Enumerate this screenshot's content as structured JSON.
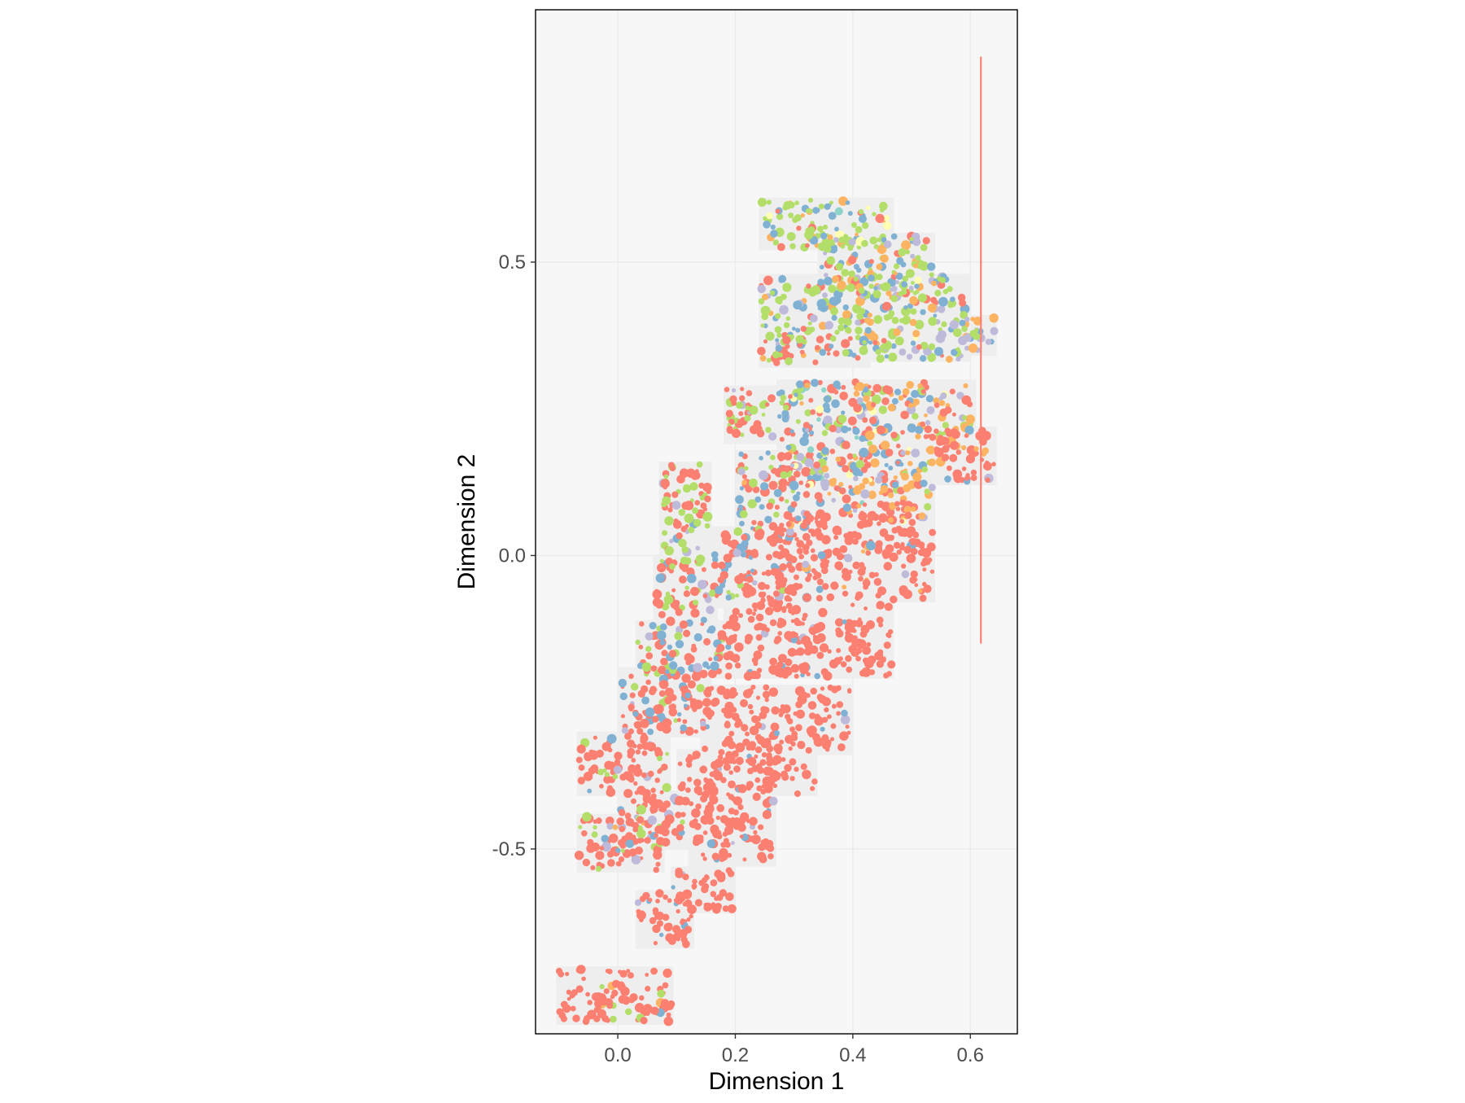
{
  "chart_data": {
    "type": "scatter",
    "title": "",
    "xlabel": "Dimension 1",
    "ylabel": "Dimension 2",
    "xlim": [
      -0.14,
      0.68
    ],
    "ylim": [
      -0.815,
      0.93
    ],
    "x_ticks": [
      {
        "value": 0.0,
        "label": "0.0"
      },
      {
        "value": 0.2,
        "label": "0.2"
      },
      {
        "value": 0.4,
        "label": "0.4"
      },
      {
        "value": 0.6,
        "label": "0.6"
      }
    ],
    "y_ticks": [
      {
        "value": 0.5,
        "label": "0.5"
      },
      {
        "value": 0.0,
        "label": "0.0"
      },
      {
        "value": -0.5,
        "label": "-0.5"
      }
    ],
    "grid": true,
    "legend": "none",
    "colors": {
      "panel_background": "#f7f7f7",
      "grid": "#ebebeb",
      "panel_border": "#000000",
      "tile_fill": "#eeeeee",
      "palette": [
        "#fb8072",
        "#b3de69",
        "#80b1d3",
        "#fdb462",
        "#bebada",
        "#8dd3c7",
        "#ffffb3"
      ]
    },
    "vertical_segment": {
      "x": 0.618,
      "y_start": 0.85,
      "y_end": -0.15,
      "color": "#fb8072"
    },
    "tiles": [
      {
        "x": [
          -0.105,
          0.095
        ],
        "y": [
          -0.7,
          -0.8
        ],
        "mix": [
          0.85,
          0.05,
          0.06,
          0.02,
          0.02,
          0.0,
          0.0
        ]
      },
      {
        "x": [
          0.03,
          0.13
        ],
        "y": [
          -0.57,
          -0.67
        ],
        "mix": [
          0.9,
          0.02,
          0.06,
          0.0,
          0.02,
          0.0,
          0.0
        ]
      },
      {
        "x": [
          0.09,
          0.2
        ],
        "y": [
          -0.53,
          -0.61
        ],
        "mix": [
          0.94,
          0.0,
          0.04,
          0.0,
          0.02,
          0.0,
          0.0
        ]
      },
      {
        "x": [
          -0.07,
          0.08
        ],
        "y": [
          -0.44,
          -0.54
        ],
        "mix": [
          0.7,
          0.08,
          0.16,
          0.02,
          0.04,
          0.0,
          0.0
        ]
      },
      {
        "x": [
          0.0,
          0.12
        ],
        "y": [
          -0.4,
          -0.5
        ],
        "mix": [
          0.8,
          0.04,
          0.12,
          0.0,
          0.04,
          0.0,
          0.0
        ]
      },
      {
        "x": [
          0.12,
          0.27
        ],
        "y": [
          -0.39,
          -0.53
        ],
        "mix": [
          0.95,
          0.0,
          0.03,
          0.0,
          0.02,
          0.0,
          0.0
        ]
      },
      {
        "x": [
          -0.07,
          0.09
        ],
        "y": [
          -0.3,
          -0.41
        ],
        "mix": [
          0.78,
          0.12,
          0.06,
          0.0,
          0.04,
          0.0,
          0.0
        ]
      },
      {
        "x": [
          0.1,
          0.34
        ],
        "y": [
          -0.33,
          -0.41
        ],
        "mix": [
          0.95,
          0.0,
          0.03,
          0.0,
          0.02,
          0.0,
          0.0
        ]
      },
      {
        "x": [
          0.0,
          0.16
        ],
        "y": [
          -0.19,
          -0.31
        ],
        "mix": [
          0.72,
          0.1,
          0.14,
          0.0,
          0.04,
          0.0,
          0.0
        ]
      },
      {
        "x": [
          0.14,
          0.4
        ],
        "y": [
          -0.22,
          -0.34
        ],
        "mix": [
          0.95,
          0.0,
          0.03,
          0.0,
          0.02,
          0.0,
          0.0
        ]
      },
      {
        "x": [
          0.03,
          0.2
        ],
        "y": [
          -0.11,
          -0.21
        ],
        "mix": [
          0.5,
          0.14,
          0.3,
          0.0,
          0.06,
          0.0,
          0.0
        ]
      },
      {
        "x": [
          0.18,
          0.47
        ],
        "y": [
          -0.08,
          -0.21
        ],
        "mix": [
          0.94,
          0.0,
          0.04,
          0.0,
          0.02,
          0.0,
          0.0
        ]
      },
      {
        "x": [
          0.06,
          0.17
        ],
        "y": [
          0.0,
          -0.12
        ],
        "mix": [
          0.6,
          0.2,
          0.14,
          0.0,
          0.06,
          0.0,
          0.0
        ]
      },
      {
        "x": [
          0.16,
          0.3
        ],
        "y": [
          0.05,
          -0.09
        ],
        "mix": [
          0.62,
          0.08,
          0.24,
          0.0,
          0.06,
          0.0,
          0.0
        ]
      },
      {
        "x": [
          0.26,
          0.54
        ],
        "y": [
          0.08,
          -0.08
        ],
        "mix": [
          0.9,
          0.0,
          0.02,
          0.04,
          0.02,
          0.0,
          0.0
        ]
      },
      {
        "x": [
          0.07,
          0.16
        ],
        "y": [
          0.16,
          0.0
        ],
        "mix": [
          0.5,
          0.4,
          0.06,
          0.0,
          0.04,
          0.0,
          0.0
        ]
      },
      {
        "x": [
          0.2,
          0.36
        ],
        "y": [
          0.18,
          0.03
        ],
        "mix": [
          0.48,
          0.12,
          0.22,
          0.06,
          0.05,
          0.02,
          0.05
        ]
      },
      {
        "x": [
          0.34,
          0.54
        ],
        "y": [
          0.18,
          0.05
        ],
        "mix": [
          0.38,
          0.06,
          0.12,
          0.3,
          0.06,
          0.02,
          0.06
        ]
      },
      {
        "x": [
          0.18,
          0.27
        ],
        "y": [
          0.29,
          0.19
        ],
        "mix": [
          0.5,
          0.42,
          0.04,
          0.0,
          0.04,
          0.0,
          0.0
        ]
      },
      {
        "x": [
          0.27,
          0.44
        ],
        "y": [
          0.3,
          0.13
        ],
        "mix": [
          0.22,
          0.3,
          0.28,
          0.04,
          0.08,
          0.04,
          0.04
        ]
      },
      {
        "x": [
          0.4,
          0.61
        ],
        "y": [
          0.3,
          0.17
        ],
        "mix": [
          0.25,
          0.12,
          0.14,
          0.36,
          0.1,
          0.0,
          0.03
        ]
      },
      {
        "x": [
          0.52,
          0.645
        ],
        "y": [
          0.22,
          0.12
        ],
        "mix": [
          0.9,
          0.0,
          0.02,
          0.04,
          0.04,
          0.0,
          0.0
        ]
      },
      {
        "x": [
          0.24,
          0.43
        ],
        "y": [
          0.48,
          0.32
        ],
        "mix": [
          0.18,
          0.38,
          0.3,
          0.08,
          0.06,
          0.0,
          0.0
        ]
      },
      {
        "x": [
          0.4,
          0.6
        ],
        "y": [
          0.48,
          0.33
        ],
        "mix": [
          0.1,
          0.42,
          0.14,
          0.16,
          0.16,
          0.0,
          0.02
        ]
      },
      {
        "x": [
          0.56,
          0.645
        ],
        "y": [
          0.41,
          0.34
        ],
        "mix": [
          0.0,
          0.3,
          0.1,
          0.3,
          0.3,
          0.0,
          0.0
        ]
      },
      {
        "x": [
          0.24,
          0.47
        ],
        "y": [
          0.61,
          0.52
        ],
        "mix": [
          0.06,
          0.48,
          0.26,
          0.08,
          0.04,
          0.02,
          0.06
        ]
      },
      {
        "x": [
          0.34,
          0.54
        ],
        "y": [
          0.55,
          0.44
        ],
        "mix": [
          0.06,
          0.52,
          0.18,
          0.14,
          0.08,
          0.0,
          0.02
        ]
      }
    ]
  }
}
